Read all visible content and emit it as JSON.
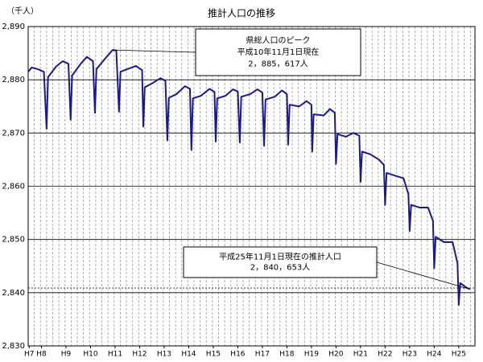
{
  "chart_data": {
    "type": "line",
    "title": "推計人口の推移",
    "y_unit": "（千人）",
    "x": [
      7.46,
      7.6,
      7.85,
      8.1,
      8.21,
      8.27,
      8.6,
      8.87,
      9.1,
      9.19,
      9.25,
      9.6,
      9.85,
      10.1,
      10.18,
      10.24,
      10.6,
      10.9,
      11.05,
      11.16,
      11.22,
      11.5,
      11.85,
      12.1,
      12.15,
      12.21,
      12.5,
      12.85,
      13.05,
      13.13,
      13.19,
      13.5,
      13.85,
      14.05,
      14.11,
      14.17,
      14.5,
      14.85,
      15.05,
      15.1,
      15.16,
      15.5,
      15.8,
      16.0,
      16.08,
      16.14,
      16.5,
      16.8,
      17.0,
      17.07,
      17.13,
      17.5,
      17.8,
      18.0,
      18.05,
      18.11,
      18.5,
      18.8,
      19.0,
      19.03,
      19.09,
      19.5,
      19.75,
      19.95,
      20.0,
      20.06,
      20.4,
      20.7,
      20.95,
      21.0,
      21.06,
      21.4,
      21.75,
      21.95,
      22.0,
      22.06,
      22.4,
      22.75,
      22.95,
      23.0,
      23.06,
      23.4,
      23.75,
      23.95,
      24.0,
      24.06,
      24.4,
      24.75,
      24.95,
      25.0,
      25.06,
      25.3,
      25.45
    ],
    "series": [
      {
        "name": "推計人口",
        "color": "#1a1a8c",
        "values": [
          2881.5,
          2882.3,
          2882.0,
          2881.5,
          2870.8,
          2880.5,
          2882.5,
          2883.5,
          2883.0,
          2872.5,
          2880.8,
          2883.0,
          2884.3,
          2883.5,
          2873.8,
          2882.0,
          2884.0,
          2885.6,
          2885.5,
          2874.0,
          2881.5,
          2882.0,
          2882.6,
          2881.8,
          2871.2,
          2878.6,
          2879.3,
          2880.3,
          2879.8,
          2868.6,
          2876.6,
          2877.3,
          2878.8,
          2878.3,
          2866.8,
          2876.5,
          2877.0,
          2878.3,
          2877.7,
          2868.4,
          2876.5,
          2877.0,
          2878.2,
          2877.8,
          2868.2,
          2876.8,
          2877.3,
          2878.2,
          2877.6,
          2867.6,
          2876.3,
          2876.8,
          2878.0,
          2877.3,
          2867.8,
          2875.3,
          2875.0,
          2876.0,
          2875.3,
          2866.5,
          2873.5,
          2873.3,
          2874.5,
          2873.8,
          2864.2,
          2869.8,
          2869.3,
          2870.0,
          2869.5,
          2860.8,
          2866.5,
          2866.0,
          2865.0,
          2864.0,
          2856.5,
          2862.5,
          2862.0,
          2861.5,
          2858.5,
          2851.6,
          2856.5,
          2856.0,
          2856.0,
          2853.5,
          2844.6,
          2850.5,
          2849.5,
          2849.5,
          2845.5,
          2837.7,
          2841.8,
          2841.0,
          2840.653
        ]
      }
    ],
    "xlim": [
      7.46,
      25.66
    ],
    "xticks": [
      {
        "value": 7.5,
        "label": "H7"
      },
      {
        "value": 8,
        "label": "H8"
      },
      {
        "value": 9,
        "label": "H9"
      },
      {
        "value": 10,
        "label": "H10"
      },
      {
        "value": 11,
        "label": "H11"
      },
      {
        "value": 12,
        "label": "H12"
      },
      {
        "value": 13,
        "label": "H13"
      },
      {
        "value": 14,
        "label": "H14"
      },
      {
        "value": 15,
        "label": "H15"
      },
      {
        "value": 16,
        "label": "H16"
      },
      {
        "value": 17,
        "label": "H17"
      },
      {
        "value": 18,
        "label": "H18"
      },
      {
        "value": 19,
        "label": "H19"
      },
      {
        "value": 20,
        "label": "H20"
      },
      {
        "value": 21,
        "label": "H21"
      },
      {
        "value": 22,
        "label": "H22"
      },
      {
        "value": 23,
        "label": "H23"
      },
      {
        "value": 24,
        "label": "H24"
      },
      {
        "value": 25,
        "label": "H25"
      }
    ],
    "ylim": [
      2830,
      2890
    ],
    "yticks": [
      {
        "value": 2830,
        "label": "2,830"
      },
      {
        "value": 2840,
        "label": "2,840"
      },
      {
        "value": 2850,
        "label": "2,850"
      },
      {
        "value": 2860,
        "label": "2,860"
      },
      {
        "value": 2870,
        "label": "2,870"
      },
      {
        "value": 2880,
        "label": "2,880"
      },
      {
        "value": 2890,
        "label": "2,890"
      }
    ],
    "grid": true,
    "annotations": [
      {
        "lines": [
          "県総人口のピーク",
          "平成10年11月1日現在",
          "2，885，617人"
        ],
        "point": 17
      },
      {
        "lines": [
          "平成25年11月1日現在の推計人口",
          "2，840，653人"
        ],
        "point": 92
      }
    ]
  }
}
